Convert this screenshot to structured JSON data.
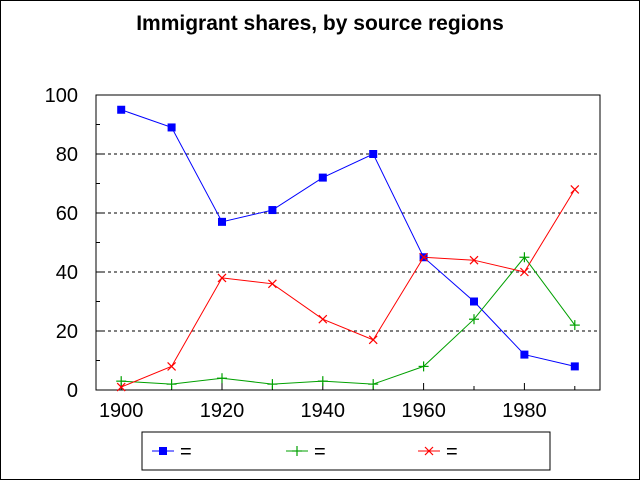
{
  "chart_data": {
    "type": "line",
    "title": "Immigrant shares, by source regions",
    "xlabel": "",
    "ylabel": "",
    "x": [
      1900,
      1910,
      1920,
      1930,
      1940,
      1950,
      1960,
      1970,
      1980,
      1990
    ],
    "xlim": [
      1895,
      1995
    ],
    "ylim": [
      0,
      100
    ],
    "x_ticks": [
      1900,
      1920,
      1940,
      1960,
      1980
    ],
    "y_ticks": [
      0,
      20,
      40,
      60,
      80,
      100
    ],
    "grid": "horizontal dashed",
    "legend_position": "bottom",
    "series": [
      {
        "legend_label": "=",
        "marker": "square",
        "color": "#0000ff",
        "values": [
          95,
          89,
          57,
          61,
          72,
          80,
          45,
          30,
          12,
          8
        ]
      },
      {
        "legend_label": "=",
        "marker": "plus",
        "color": "#00a000",
        "values": [
          3,
          2,
          4,
          2,
          3,
          2,
          8,
          24,
          45,
          22
        ]
      },
      {
        "legend_label": "=",
        "marker": "cross",
        "color": "#ff0000",
        "values": [
          1,
          8,
          38,
          36,
          24,
          17,
          45,
          44,
          40,
          68
        ]
      }
    ]
  }
}
